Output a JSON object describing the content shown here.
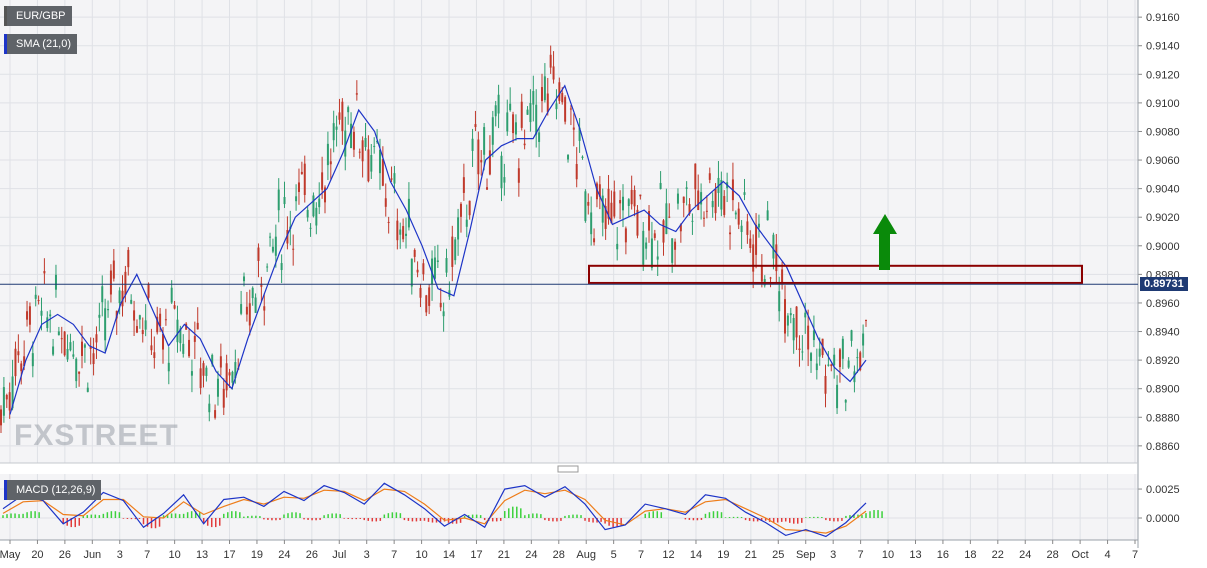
{
  "legend": {
    "symbol": "EUR/GBP",
    "sma": "SMA (21,0)",
    "macd": "MACD (12,26,9)"
  },
  "watermark": "FXSTREET",
  "current_price_label": "0.89731",
  "colors": {
    "bull": "#2e9e6f",
    "bear": "#c0392b",
    "sma": "#1d34c7",
    "macd_line": "#1d34c7",
    "signal_line": "#ee7d1a",
    "hist_pos": "#3cd13c",
    "hist_neg": "#e23b3b",
    "zone_border": "#8b0000",
    "arrow": "#0a8a0a",
    "price_line": "#1e3a73"
  },
  "chart_data": {
    "type": "candlestick",
    "price_axis": {
      "ticks": [
        "0.9160",
        "0.9140",
        "0.9120",
        "0.9100",
        "0.9080",
        "0.9060",
        "0.9040",
        "0.9020",
        "0.9000",
        "0.8980",
        "0.8960",
        "0.8940",
        "0.8920",
        "0.8900",
        "0.8880",
        "0.8860"
      ],
      "range": [
        0.8848,
        0.9172
      ]
    },
    "macd_axis": {
      "ticks": [
        "0.0025",
        "0.0000"
      ],
      "range": [
        -0.0019,
        0.0038
      ]
    },
    "x_labels": [
      "May",
      "20",
      "26",
      "Jun",
      "3",
      "7",
      "10",
      "13",
      "17",
      "19",
      "24",
      "26",
      "Jul",
      "3",
      "7",
      "10",
      "14",
      "17",
      "21",
      "24",
      "28",
      "Aug",
      "5",
      "7",
      "12",
      "14",
      "19",
      "21",
      "25",
      "Sep",
      "3",
      "7",
      "10",
      "13",
      "16",
      "18",
      "22",
      "24",
      "28",
      "Oct",
      "4",
      "7"
    ],
    "current_price": 0.89731,
    "resistance_zone": {
      "low": 0.8974,
      "high": 0.8986
    },
    "sma_series": [
      0.8882,
      0.892,
      0.8945,
      0.8952,
      0.8945,
      0.893,
      0.8925,
      0.896,
      0.898,
      0.8955,
      0.893,
      0.8945,
      0.8935,
      0.8912,
      0.89,
      0.8935,
      0.8965,
      0.8995,
      0.902,
      0.903,
      0.904,
      0.9065,
      0.9095,
      0.908,
      0.9045,
      0.9025,
      0.9,
      0.897,
      0.8965,
      0.901,
      0.906,
      0.907,
      0.9075,
      0.9075,
      0.9095,
      0.9112,
      0.908,
      0.904,
      0.9015,
      0.902,
      0.9025,
      0.9015,
      0.901,
      0.9025,
      0.9035,
      0.9045,
      0.9035,
      0.9015,
      0.9,
      0.8985,
      0.896,
      0.8935,
      0.8915,
      0.8905,
      0.892
    ],
    "macd_series": {
      "macd": [
        0.0008,
        0.002,
        0.0015,
        -0.0005,
        0.0005,
        0.0022,
        0.0015,
        -0.0008,
        0.0004,
        0.002,
        -0.0005,
        0.0016,
        0.0018,
        0.001,
        0.0023,
        0.0015,
        0.0028,
        0.0022,
        0.0012,
        0.003,
        0.002,
        0.0008,
        -0.0007,
        0.0003,
        -0.0008,
        0.0025,
        0.0028,
        0.0018,
        0.0027,
        0.0012,
        -0.001,
        -0.0006,
        0.0012,
        0.0008,
        0.0003,
        0.002,
        0.0017,
        0.0005,
        -0.0004,
        -0.0015,
        -0.001,
        -0.0016,
        -0.0004,
        0.0013
      ],
      "signal": [
        0.0004,
        0.0014,
        0.0015,
        0.0003,
        0.0002,
        0.0016,
        0.0016,
        0.0001,
        0.0,
        0.0014,
        0.0003,
        0.001,
        0.0016,
        0.0012,
        0.0018,
        0.0017,
        0.0024,
        0.0023,
        0.0015,
        0.0025,
        0.0023,
        0.0012,
        -0.0002,
        0.0,
        -0.0005,
        0.0015,
        0.0024,
        0.0021,
        0.0024,
        0.0016,
        -0.0002,
        -0.0006,
        0.0006,
        0.0008,
        0.0005,
        0.0014,
        0.0016,
        0.0008,
        0.0,
        -0.001,
        -0.0011,
        -0.0013,
        -0.0007,
        0.0006
      ]
    }
  }
}
